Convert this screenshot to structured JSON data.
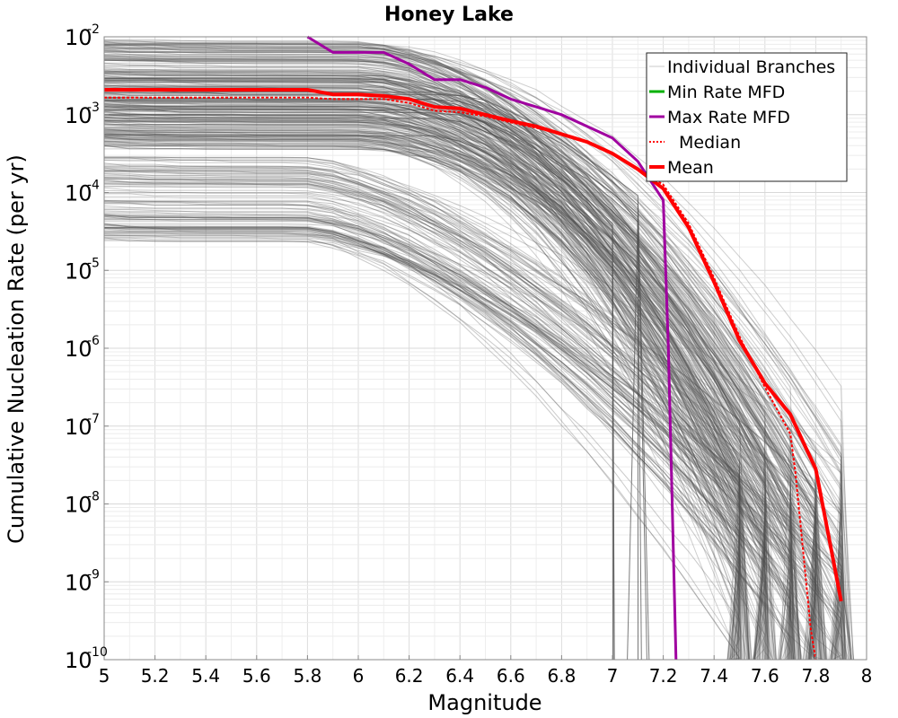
{
  "chart_data": {
    "type": "line",
    "title": "Honey Lake",
    "xlabel": "Magnitude",
    "ylabel": "Cumulative Nucleation Rate (per yr)",
    "xlim": [
      5,
      8
    ],
    "ylim_log10": [
      -10,
      -2
    ],
    "yscale": "log",
    "grid": true,
    "legend_position": "top-right",
    "x_ticks": [
      "5",
      "5.2",
      "5.4",
      "5.6",
      "5.8",
      "6",
      "6.2",
      "6.4",
      "6.6",
      "6.8",
      "7",
      "7.2",
      "7.4",
      "7.6",
      "7.8",
      "8"
    ],
    "y_ticks": [
      {
        "base": "10",
        "exp": "-2"
      },
      {
        "base": "10",
        "exp": "-3"
      },
      {
        "base": "10",
        "exp": "-4"
      },
      {
        "base": "10",
        "exp": "-5"
      },
      {
        "base": "10",
        "exp": "-6"
      },
      {
        "base": "10",
        "exp": "-7"
      },
      {
        "base": "10",
        "exp": "-8"
      },
      {
        "base": "10",
        "exp": "-9"
      },
      {
        "base": "10",
        "exp": "-10"
      }
    ],
    "legend": [
      {
        "label": "Individual Branches",
        "color": "#c8c8c8",
        "style": "solid-thin"
      },
      {
        "label": "Min Rate MFD",
        "color": "#00b000",
        "style": "solid"
      },
      {
        "label": "Max Rate MFD",
        "color": "#a000a0",
        "style": "solid"
      },
      {
        "label": "Median",
        "color": "#ff0000",
        "style": "dotted"
      },
      {
        "label": "Mean",
        "color": "#ff0000",
        "style": "solid-thick"
      }
    ],
    "series": [
      {
        "name": "Max Rate MFD",
        "color": "#a000a0",
        "x": [
          5.8,
          5.9,
          6.0,
          6.1,
          6.2,
          6.3,
          6.4,
          6.5,
          6.6,
          6.7,
          6.8,
          6.9,
          7.0,
          7.1,
          7.2,
          7.22,
          7.25
        ],
        "log10y": [
          -2.0,
          -2.2,
          -2.2,
          -2.2,
          -2.35,
          -2.55,
          -2.55,
          -2.65,
          -2.8,
          -2.9,
          -3.0,
          -3.15,
          -3.3,
          -3.6,
          -4.1,
          -6.0,
          -10.0
        ]
      },
      {
        "name": "Median",
        "color": "#ff0000",
        "x": [
          5.0,
          5.8,
          5.9,
          6.0,
          6.1,
          6.2,
          6.3,
          6.4,
          6.5,
          6.6,
          6.7,
          6.8,
          6.9,
          7.0,
          7.1,
          7.2,
          7.3,
          7.4,
          7.5,
          7.6,
          7.7,
          7.72,
          7.75,
          7.78,
          7.8
        ],
        "log10y": [
          -2.78,
          -2.78,
          -2.8,
          -2.8,
          -2.8,
          -2.85,
          -2.95,
          -2.97,
          -3.02,
          -3.1,
          -3.17,
          -3.25,
          -3.35,
          -3.5,
          -3.7,
          -3.9,
          -4.4,
          -5.1,
          -5.85,
          -6.5,
          -7.1,
          -7.6,
          -8.6,
          -9.6,
          -10.0
        ]
      },
      {
        "name": "Mean",
        "color": "#ff0000",
        "x": [
          5.0,
          5.8,
          5.9,
          6.0,
          6.1,
          6.2,
          6.3,
          6.4,
          6.5,
          6.6,
          6.7,
          6.8,
          6.9,
          7.0,
          7.1,
          7.2,
          7.3,
          7.4,
          7.5,
          7.6,
          7.7,
          7.8,
          7.9
        ],
        "log10y": [
          -2.68,
          -2.68,
          -2.74,
          -2.74,
          -2.76,
          -2.8,
          -2.9,
          -2.92,
          -3.0,
          -3.08,
          -3.15,
          -3.25,
          -3.35,
          -3.5,
          -3.7,
          -3.95,
          -4.45,
          -5.15,
          -5.9,
          -6.45,
          -6.85,
          -7.55,
          -9.25
        ]
      }
    ]
  }
}
